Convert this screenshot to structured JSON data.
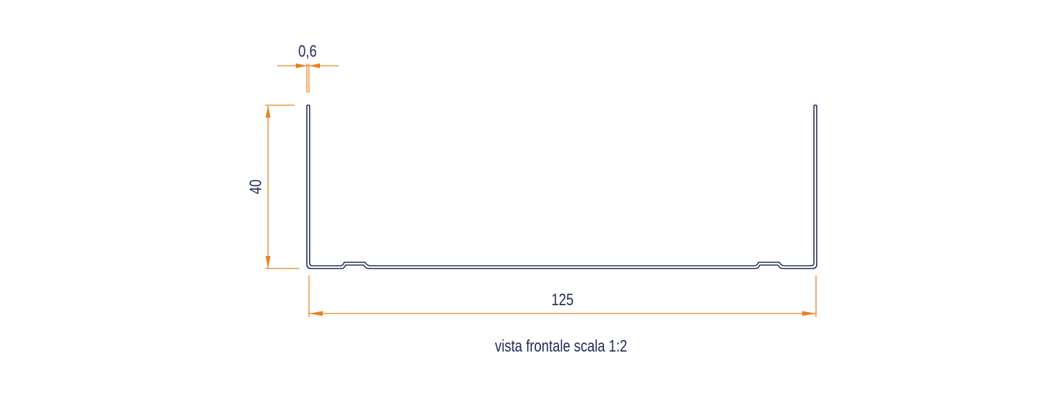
{
  "dimensions": {
    "thickness": "0,6",
    "height": "40",
    "width": "125"
  },
  "caption": "vista frontale scala 1:2"
}
